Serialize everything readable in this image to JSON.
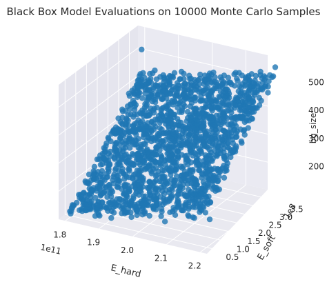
{
  "chart_data": {
    "type": "scatter",
    "projection": "3d",
    "title": "Black Box Model Evaluations on 10000 Monte Carlo Samples",
    "n_samples": 10000,
    "series": [
      {
        "color": "#1f77b4",
        "alpha": 0.8,
        "x": [
          180000000000.0,
          185000000000.0,
          190000000000.0,
          195000000000.0,
          200000000000.0,
          205000000000.0,
          210000000000.0,
          215000000000.0,
          220000000000.0,
          181000000000.0,
          186000000000.0,
          192000000000.0,
          198000000000.0,
          203000000000.0,
          208000000000.0,
          214000000000.0,
          219000000000.0,
          183000000000.0,
          189000000000.0,
          195000000000.0,
          201000000000.0,
          207000000000.0,
          213000000000.0,
          218000000000.0
        ],
        "y": [
          50000000.0,
          90000000.0,
          130000000.0,
          170000000.0,
          210000000.0,
          250000000.0,
          290000000.0,
          330000000.0,
          370000000.0,
          360000000.0,
          320000000.0,
          280000000.0,
          240000000.0,
          200000000.0,
          160000000.0,
          120000000.0,
          80000000.0,
          220000000.0,
          300000000.0,
          100000000.0,
          340000000.0,
          60000000.0,
          260000000.0,
          140000000.0
        ],
        "z": [
          130,
          190,
          250,
          300,
          360,
          420,
          470,
          520,
          560,
          520,
          470,
          420,
          370,
          330,
          280,
          230,
          180,
          360,
          450,
          220,
          480,
          150,
          400,
          250
        ]
      }
    ],
    "xlabel": "E_hard",
    "ylabel": "E_soft",
    "zlabel": "bg_size",
    "x_offset_label": "1e11",
    "y_offset_label": "1e8",
    "x_ticks": [
      "1.8",
      "1.9",
      "2.0",
      "2.1",
      "2.2"
    ],
    "y_ticks": [
      "0.5",
      "1.0",
      "1.5",
      "2.0",
      "2.5",
      "3.0",
      "3.5"
    ],
    "z_ticks": [
      "200",
      "300",
      "400",
      "500"
    ],
    "xlim": [
      178000000000.0,
      222000000000.0
    ],
    "ylim": [
      20000000.0,
      390000000.0
    ],
    "zlim": [
      100,
      580
    ],
    "grid": true,
    "legend": "none"
  }
}
